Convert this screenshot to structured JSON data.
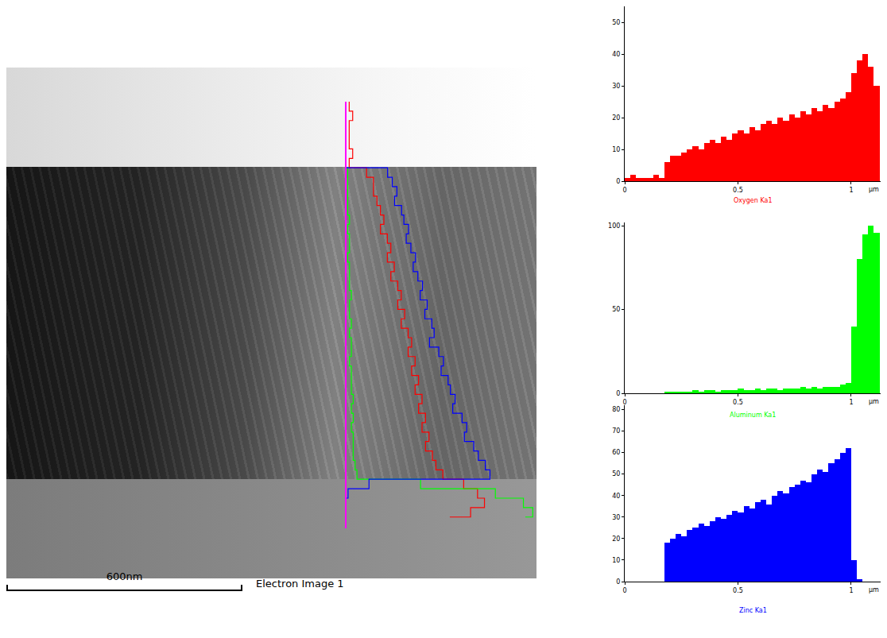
{
  "electron_image": {
    "title": "Electron Image 1",
    "scale_bar": "600nm"
  },
  "chart_data": [
    {
      "type": "bar",
      "title": "Oxygen Ka1",
      "color": "#ff0000",
      "xlabel": "µm",
      "x": [
        0,
        0.025,
        0.05,
        0.075,
        0.1,
        0.125,
        0.15,
        0.175,
        0.2,
        0.225,
        0.25,
        0.275,
        0.3,
        0.325,
        0.35,
        0.375,
        0.4,
        0.425,
        0.45,
        0.475,
        0.5,
        0.525,
        0.55,
        0.575,
        0.6,
        0.625,
        0.65,
        0.675,
        0.7,
        0.725,
        0.75,
        0.775,
        0.8,
        0.825,
        0.85,
        0.875,
        0.9,
        0.925,
        0.95,
        0.975,
        1,
        1.025,
        1.05,
        1.075,
        1.1
      ],
      "values": [
        1,
        2,
        1,
        1,
        1,
        2,
        1,
        6,
        8,
        8,
        9,
        10,
        11,
        10,
        12,
        13,
        12,
        14,
        13,
        15,
        16,
        15,
        17,
        16,
        18,
        19,
        18,
        20,
        19,
        21,
        20,
        22,
        21,
        23,
        22,
        24,
        23,
        25,
        26,
        28,
        34,
        38,
        40,
        36,
        30
      ],
      "xlim": [
        0,
        1.13
      ],
      "xticks": [
        0,
        0.5,
        1
      ],
      "ylim": [
        0,
        55
      ],
      "yticks": [
        0,
        10,
        20,
        30,
        40,
        50
      ]
    },
    {
      "type": "bar",
      "title": "Aluminum Ka1",
      "color": "#00ff00",
      "xlabel": "µm",
      "x": [
        0,
        0.025,
        0.05,
        0.075,
        0.1,
        0.125,
        0.15,
        0.175,
        0.2,
        0.225,
        0.25,
        0.275,
        0.3,
        0.325,
        0.35,
        0.375,
        0.4,
        0.425,
        0.45,
        0.475,
        0.5,
        0.525,
        0.55,
        0.575,
        0.6,
        0.625,
        0.65,
        0.675,
        0.7,
        0.725,
        0.75,
        0.775,
        0.8,
        0.825,
        0.85,
        0.875,
        0.9,
        0.925,
        0.95,
        0.975,
        1,
        1.025,
        1.05,
        1.075,
        1.1
      ],
      "values": [
        0,
        0,
        0,
        0,
        0,
        0,
        0,
        1,
        1,
        1,
        1,
        1,
        2,
        1,
        2,
        2,
        1,
        2,
        2,
        2,
        3,
        2,
        2,
        3,
        2,
        3,
        3,
        2,
        3,
        3,
        3,
        4,
        3,
        4,
        3,
        4,
        4,
        4,
        5,
        6,
        40,
        80,
        95,
        100,
        96
      ],
      "xlim": [
        0,
        1.13
      ],
      "xticks": [
        0,
        0.5,
        1
      ],
      "ylim": [
        0,
        102
      ],
      "yticks": [
        0,
        50,
        100
      ]
    },
    {
      "type": "bar",
      "title": "Zinc Ka1",
      "color": "#0000ff",
      "xlabel": "µm",
      "x": [
        0,
        0.025,
        0.05,
        0.075,
        0.1,
        0.125,
        0.15,
        0.175,
        0.2,
        0.225,
        0.25,
        0.275,
        0.3,
        0.325,
        0.35,
        0.375,
        0.4,
        0.425,
        0.45,
        0.475,
        0.5,
        0.525,
        0.55,
        0.575,
        0.6,
        0.625,
        0.65,
        0.675,
        0.7,
        0.725,
        0.75,
        0.775,
        0.8,
        0.825,
        0.85,
        0.875,
        0.9,
        0.925,
        0.95,
        0.975,
        1,
        1.025,
        1.05,
        1.075,
        1.1
      ],
      "values": [
        0,
        0,
        0,
        0,
        0,
        0,
        0,
        18,
        20,
        22,
        21,
        24,
        25,
        27,
        26,
        28,
        30,
        29,
        31,
        33,
        32,
        35,
        34,
        37,
        38,
        36,
        40,
        42,
        41,
        44,
        45,
        47,
        46,
        50,
        52,
        51,
        55,
        57,
        60,
        62,
        10,
        1,
        0,
        0,
        0
      ],
      "xlim": [
        0,
        1.13
      ],
      "xticks": [
        0,
        0.5,
        1
      ],
      "ylim": [
        0,
        82
      ],
      "yticks": [
        0,
        10,
        20,
        30,
        40,
        50,
        60,
        70,
        80
      ]
    }
  ]
}
